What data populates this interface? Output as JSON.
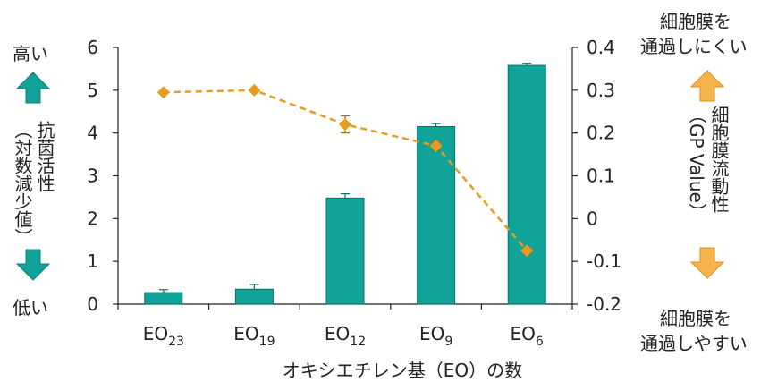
{
  "chart_data": {
    "type": "bar",
    "categories": [
      {
        "base": "EO",
        "sub": "23"
      },
      {
        "base": "EO",
        "sub": "19"
      },
      {
        "base": "EO",
        "sub": "12"
      },
      {
        "base": "EO",
        "sub": "9"
      },
      {
        "base": "EO",
        "sub": "6"
      }
    ],
    "xlabel": "オキシエチレン基（EO）の数",
    "left_axis": {
      "label_lines": [
        "抗菌活性",
        "（対数減少値）"
      ],
      "ylim": [
        0,
        6
      ],
      "ticks": [
        0,
        1,
        2,
        3,
        4,
        5,
        6
      ],
      "tick_labels": [
        "0",
        "1",
        "2",
        "3",
        "4",
        "5",
        "6"
      ],
      "high_label": "高い",
      "low_label": "低い"
    },
    "right_axis": {
      "label_lines": [
        "細胞膜流動性",
        "（GP Value）"
      ],
      "ylim": [
        -0.2,
        0.4
      ],
      "ticks": [
        -0.2,
        -0.1,
        0,
        0.1,
        0.2,
        0.3,
        0.4
      ],
      "tick_labels": [
        "-0.2",
        "-0.1",
        "0",
        "0.1",
        "0.2",
        "0.3",
        "0.4"
      ],
      "top_label_lines": [
        "細胞膜を",
        "通過しにくい"
      ],
      "bottom_label_lines": [
        "細胞膜を",
        "通過しやすい"
      ]
    },
    "series": [
      {
        "type": "bar",
        "axis": "left",
        "color": "#0fa39a",
        "values": [
          0.27,
          0.35,
          2.48,
          4.15,
          5.58
        ],
        "errors": [
          0.07,
          0.11,
          0.1,
          0.07,
          0.05
        ]
      },
      {
        "type": "line",
        "axis": "right",
        "color": "#e79b22",
        "dashed": true,
        "marker": "diamond",
        "values": [
          0.295,
          0.3,
          0.22,
          0.17,
          -0.075
        ],
        "errors": [
          0,
          0,
          0.02,
          0.01,
          0.008
        ]
      }
    ],
    "grid": false,
    "legend": "none",
    "colors": {
      "bar": "#0fa39a",
      "line": "#e79b22",
      "axis": "#222222"
    }
  }
}
